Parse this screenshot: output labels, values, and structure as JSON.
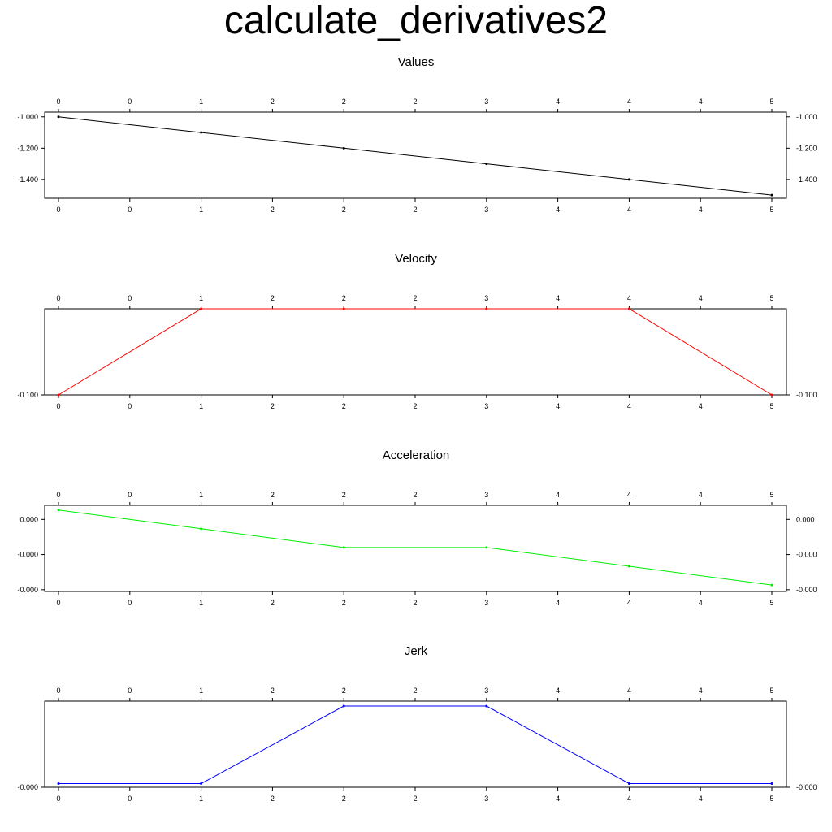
{
  "page": {
    "title": "calculate_derivatives2"
  },
  "chart_data": [
    {
      "type": "line",
      "title": "Values",
      "color": "#000000",
      "x": [
        0,
        1,
        2,
        3,
        4,
        5
      ],
      "values": [
        -1.0,
        -1.1,
        -1.2,
        -1.3,
        -1.4,
        -1.5
      ],
      "ylim": [
        -1.52,
        -0.97
      ],
      "x_tick_labels": [
        "0",
        "0",
        "1",
        "2",
        "2",
        "2",
        "3",
        "4",
        "4",
        "4",
        "5"
      ],
      "y_ticks": [
        -1.0,
        -1.2,
        -1.4
      ],
      "y_tick_labels": [
        "-1.000",
        "-1.200",
        "-1.400"
      ],
      "grid": false
    },
    {
      "type": "line",
      "title": "Velocity",
      "color": "#ff0000",
      "x": [
        0,
        1,
        2,
        3,
        4,
        5
      ],
      "values": [
        -0.1,
        -0.09,
        -0.09,
        -0.09,
        -0.09,
        -0.1
      ],
      "ylim": [
        -0.1,
        -0.09
      ],
      "x_tick_labels": [
        "0",
        "0",
        "1",
        "2",
        "2",
        "2",
        "3",
        "4",
        "4",
        "4",
        "5"
      ],
      "y_ticks": [
        -0.1
      ],
      "y_tick_labels": [
        "-0.100"
      ],
      "grid": false
    },
    {
      "type": "line",
      "title": "Acceleration",
      "color": "#00ee00",
      "x": [
        0,
        1,
        2,
        3,
        4,
        5
      ],
      "values": [
        0.00032,
        -0.00032,
        -0.00096,
        -0.00096,
        -0.0016,
        -0.00224
      ],
      "ylim": [
        -0.00246,
        0.00048
      ],
      "x_tick_labels": [
        "0",
        "0",
        "1",
        "2",
        "2",
        "2",
        "3",
        "4",
        "4",
        "4",
        "5"
      ],
      "y_ticks": [
        0.0,
        -0.0012,
        -0.0024
      ],
      "y_tick_labels": [
        "0.000",
        "-0.000",
        "-0.000"
      ],
      "grid": false
    },
    {
      "type": "line",
      "title": "Jerk",
      "color": "#0000ff",
      "x": [
        0,
        1,
        2,
        3,
        4,
        5
      ],
      "values": [
        -0.00064,
        -0.00064,
        0.0,
        0.0,
        -0.00064,
        -0.00064
      ],
      "ylim": [
        -0.00067,
        4e-05
      ],
      "x_tick_labels": [
        "0",
        "0",
        "1",
        "2",
        "2",
        "2",
        "3",
        "4",
        "4",
        "4",
        "5"
      ],
      "y_ticks": [
        -0.00067
      ],
      "y_tick_labels": [
        "-0.000"
      ],
      "grid": false
    }
  ]
}
